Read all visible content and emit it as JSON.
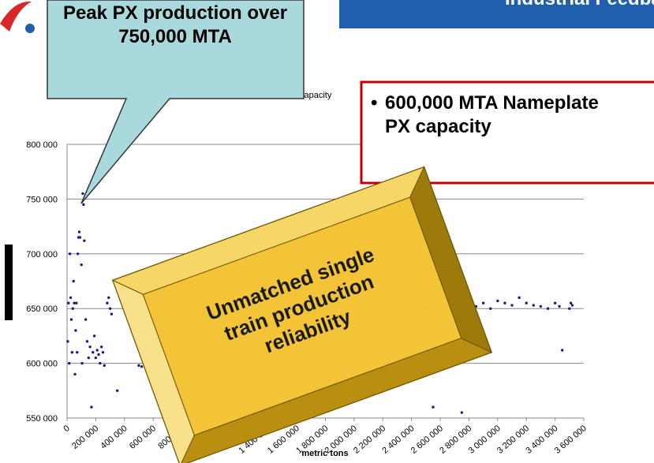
{
  "chart_data": {
    "type": "scatter",
    "title": "Industrial Feedbac",
    "x_label": "metric tons",
    "legend_text": "capacity",
    "annotations": {
      "callout": "Peak PX production over 750,000 MTA",
      "nameplate": "600,000 MTA Nameplate PX capacity",
      "reliability": [
        "Unmatched single",
        "train production",
        "reliability"
      ]
    },
    "xlim": [
      0,
      3600000
    ],
    "ylim": [
      550000,
      800000
    ],
    "xticks": [
      0,
      {
        "value": 200000,
        "label": "200 000"
      },
      {
        "value": 400000,
        "label": "400 000"
      },
      {
        "value": 600000,
        "label": "600 000"
      },
      {
        "value": 800000,
        "label": "800 000"
      },
      {
        "value": 1000000,
        "label": "1 000 000"
      },
      {
        "value": 1200000,
        "label": "1 200 000"
      },
      {
        "value": 1400000,
        "label": "1 400 000"
      },
      {
        "value": 1600000,
        "label": "1 600 000"
      },
      {
        "value": 1800000,
        "label": "1 800 000"
      },
      {
        "value": 2000000,
        "label": "2 000 000"
      },
      {
        "value": 2200000,
        "label": "2 200 000"
      },
      {
        "value": 2400000,
        "label": "2 400 000"
      },
      {
        "value": 2600000,
        "label": "2 600 000"
      },
      {
        "value": 2800000,
        "label": "2 800 000"
      },
      {
        "value": 3000000,
        "label": "3 000 000"
      },
      {
        "value": 3200000,
        "label": "3 200 000"
      },
      {
        "value": 3400000,
        "label": "3 400 000"
      },
      {
        "value": 3600000,
        "label": "3 600 000"
      }
    ],
    "yticks": [
      {
        "value": 550000,
        "label": "550 000"
      },
      {
        "value": 600000,
        "label": "600 000"
      },
      {
        "value": 650000,
        "label": "650 000"
      },
      {
        "value": 700000,
        "label": "700 000"
      },
      {
        "value": 750000,
        "label": "750 000"
      },
      {
        "value": 800000,
        "label": "800 000"
      }
    ],
    "grid": true,
    "color": "#1a1a8c",
    "x": [
      5000,
      10000,
      15000,
      20000,
      25000,
      30000,
      35000,
      40000,
      45000,
      50000,
      55000,
      60000,
      65000,
      70000,
      75000,
      80000,
      85000,
      90000,
      100000,
      105000,
      110000,
      115000,
      120000,
      130000,
      140000,
      150000,
      160000,
      170000,
      180000,
      190000,
      200000,
      210000,
      220000,
      230000,
      240000,
      250000,
      260000,
      280000,
      290000,
      300000,
      310000,
      350000,
      500000,
      520000,
      540000,
      560000,
      580000,
      600000,
      900000,
      1000000,
      1100000,
      1200000,
      1300000,
      1400000,
      1500000,
      1600000,
      1700000,
      1800000,
      1900000,
      2000000,
      2100000,
      2200000,
      2300000,
      2400000,
      2500000,
      2550000,
      2600000,
      2700000,
      2750000,
      2800000,
      2850000,
      2900000,
      2950000,
      3000000,
      3050000,
      3100000,
      3150000,
      3200000,
      3250000,
      3300000,
      3350000,
      3400000,
      3430000,
      3450000,
      3500000,
      3510000,
      3520000
    ],
    "values": [
      620000,
      655000,
      600000,
      700000,
      660000,
      640000,
      610000,
      650000,
      675000,
      655000,
      590000,
      630000,
      655000,
      610000,
      700000,
      715000,
      720000,
      715000,
      690000,
      600000,
      755000,
      745000,
      712000,
      640000,
      620000,
      605000,
      615000,
      560000,
      610000,
      625000,
      605000,
      612000,
      608000,
      600000,
      615000,
      610000,
      598000,
      655000,
      660000,
      650000,
      645000,
      575000,
      598000,
      597000,
      600000,
      595000,
      598000,
      600000,
      580000,
      640000,
      660000,
      650000,
      620000,
      555000,
      660000,
      640000,
      650000,
      655000,
      655000,
      660000,
      658000,
      655000,
      653000,
      652000,
      650000,
      560000,
      645000,
      650000,
      555000,
      648000,
      652000,
      655000,
      650000,
      657000,
      655000,
      653000,
      660000,
      655000,
      653000,
      652000,
      650000,
      655000,
      652000,
      612000,
      650000,
      655000,
      653000
    ]
  }
}
